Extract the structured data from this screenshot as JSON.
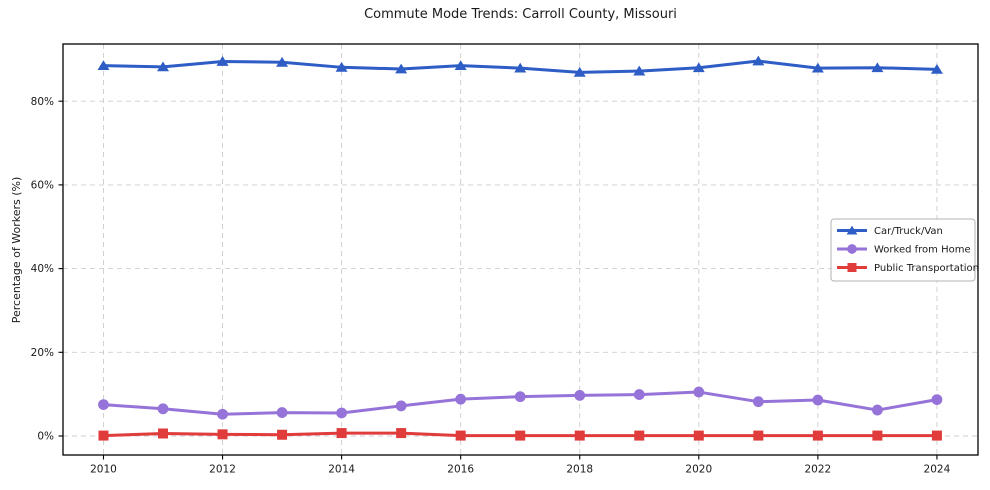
{
  "chart_data": {
    "type": "line",
    "title": "Commute Mode Trends: Carroll County, Missouri",
    "xlabel": "",
    "ylabel": "Percentage of Workers (%)",
    "x": [
      2010,
      2011,
      2012,
      2013,
      2014,
      2015,
      2016,
      2017,
      2018,
      2019,
      2020,
      2021,
      2022,
      2023,
      2024
    ],
    "series": [
      {
        "name": "Car/Truck/Van",
        "color": "#2e5dc6",
        "marker": "triangle",
        "values": [
          88.5,
          88.2,
          89.5,
          89.3,
          88.1,
          87.7,
          88.5,
          87.9,
          86.9,
          87.2,
          88.0,
          89.6,
          87.9,
          88.0,
          87.6
        ]
      },
      {
        "name": "Worked from Home",
        "color": "#9673d8",
        "marker": "circle",
        "values": [
          7.5,
          6.5,
          5.2,
          5.6,
          5.5,
          7.2,
          8.8,
          9.4,
          9.7,
          9.9,
          10.5,
          8.2,
          8.6,
          6.2,
          8.7
        ]
      },
      {
        "name": "Public Transportation",
        "color": "#e03c3c",
        "marker": "square",
        "values": [
          0.1,
          0.6,
          0.4,
          0.3,
          0.7,
          0.7,
          0.1,
          0.1,
          0.1,
          0.1,
          0.1,
          0.1,
          0.1,
          0.1,
          0.1
        ]
      }
    ],
    "x_tick_values": [
      2010,
      2012,
      2014,
      2016,
      2018,
      2020,
      2022,
      2024
    ],
    "x_tick_labels": [
      "2010",
      "2012",
      "2014",
      "2016",
      "2018",
      "2020",
      "2022",
      "2024"
    ],
    "y_tick_values": [
      0,
      20,
      40,
      60,
      80
    ],
    "y_tick_labels": [
      "0%",
      "20%",
      "40%",
      "60%",
      "80%"
    ],
    "xlim": [
      2009.32,
      2024.69
    ],
    "ylim": [
      -4.54,
      93.67
    ],
    "grid": true,
    "legend_position": "middle-right",
    "colors": {
      "grid": "#cdcdcd",
      "axis": "#000000",
      "text": "#1a1a1a",
      "legend_border": "#b3b3b3",
      "background": "#ffffff"
    }
  }
}
